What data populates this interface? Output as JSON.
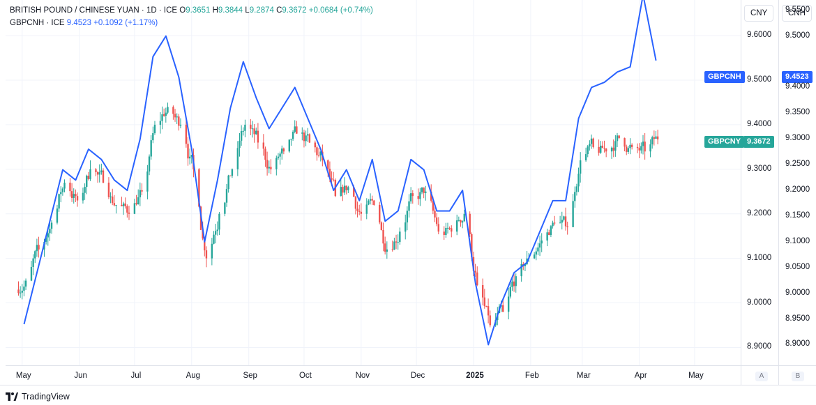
{
  "legend": {
    "main": {
      "title": "BRITISH POUND / CHINESE YUAN · 1D · ICE",
      "o_label": "O",
      "o": "9.3651",
      "h_label": "H",
      "h": "9.3844",
      "l_label": "L",
      "l": "9.2874",
      "c_label": "C",
      "c": "9.3672",
      "change": "+0.0684 (+0.74%)"
    },
    "compare": {
      "title": "GBPCNH · ICE",
      "price": "9.4523",
      "change": "+0.1092 (+1.17%)"
    }
  },
  "axes": {
    "left_unit": "CNY",
    "right_unit": "CNH",
    "left_ticks": [
      "9.6000",
      "9.5000",
      "9.4000",
      "9.3000",
      "9.2000",
      "9.1000",
      "9.0000",
      "8.9000"
    ],
    "right_ticks": [
      "9.5500",
      "9.5000",
      "9.4000",
      "9.3500",
      "9.3000",
      "9.2500",
      "9.2000",
      "9.1500",
      "9.1000",
      "9.0500",
      "9.0000",
      "8.9500",
      "8.9000"
    ],
    "months": [
      "May",
      "Jun",
      "Jul",
      "Aug",
      "Sep",
      "Oct",
      "Nov",
      "Dec",
      "2025",
      "Feb",
      "Mar",
      "Apr",
      "May"
    ],
    "scale_buttons": [
      "A",
      "B"
    ]
  },
  "pills": {
    "cnh_label": "GBPCNH",
    "cnh_value": "9.4523",
    "cny_label": "GBPCNY",
    "cny_value": "9.3672"
  },
  "footer": {
    "brand": "TradingView"
  },
  "colors": {
    "up": "#26a69a",
    "down": "#ef5350",
    "compare": "#2962ff",
    "grid": "#f0f3fa"
  },
  "chart_data": {
    "type": "candlestick",
    "series": [
      {
        "name": "GBPCNY",
        "type": "candlestick",
        "x": [
          "2024-04-29",
          "2024-05-06",
          "2024-05-13",
          "2024-05-20",
          "2024-05-27",
          "2024-06-03",
          "2024-06-10",
          "2024-06-17",
          "2024-06-24",
          "2024-07-01",
          "2024-07-08",
          "2024-07-15",
          "2024-07-22",
          "2024-07-29",
          "2024-08-05",
          "2024-08-12",
          "2024-08-19",
          "2024-08-26",
          "2024-09-02",
          "2024-09-09",
          "2024-09-16",
          "2024-09-23",
          "2024-09-30",
          "2024-10-07",
          "2024-10-14",
          "2024-10-21",
          "2024-10-28",
          "2024-11-04",
          "2024-11-11",
          "2024-11-18",
          "2024-11-25",
          "2024-12-02",
          "2024-12-09",
          "2024-12-16",
          "2024-12-23",
          "2024-12-30",
          "2025-01-06",
          "2025-01-13",
          "2025-01-20",
          "2025-01-27",
          "2025-02-03",
          "2025-02-10",
          "2025-02-17",
          "2025-02-24",
          "2025-03-03",
          "2025-03-10",
          "2025-03-17",
          "2025-03-24",
          "2025-03-31",
          "2025-04-07"
        ],
        "close": [
          9.05,
          9.12,
          9.18,
          9.27,
          9.23,
          9.3,
          9.27,
          9.22,
          9.2,
          9.25,
          9.4,
          9.44,
          9.4,
          9.3,
          9.1,
          9.2,
          9.3,
          9.4,
          9.36,
          9.3,
          9.34,
          9.38,
          9.36,
          9.32,
          9.24,
          9.26,
          9.2,
          9.22,
          9.12,
          9.16,
          9.24,
          9.25,
          9.16,
          9.16,
          9.2,
          9.04,
          8.95,
          8.98,
          9.06,
          9.1,
          9.14,
          9.18,
          9.17,
          9.32,
          9.35,
          9.34,
          9.37,
          9.35,
          9.34,
          9.3672
        ]
      },
      {
        "name": "GBPCNH",
        "type": "line",
        "x": [
          "2024-04-29",
          "2024-05-06",
          "2024-05-13",
          "2024-05-20",
          "2024-05-27",
          "2024-06-03",
          "2024-06-10",
          "2024-06-17",
          "2024-06-24",
          "2024-07-01",
          "2024-07-08",
          "2024-07-15",
          "2024-07-22",
          "2024-07-29",
          "2024-08-05",
          "2024-08-12",
          "2024-08-19",
          "2024-08-26",
          "2024-09-02",
          "2024-09-09",
          "2024-09-16",
          "2024-09-23",
          "2024-09-30",
          "2024-10-07",
          "2024-10-14",
          "2024-10-21",
          "2024-10-28",
          "2024-11-04",
          "2024-11-11",
          "2024-11-18",
          "2024-11-25",
          "2024-12-02",
          "2024-12-09",
          "2024-12-16",
          "2024-12-23",
          "2024-12-30",
          "2025-01-06",
          "2025-01-13",
          "2025-01-20",
          "2025-01-27",
          "2025-02-03",
          "2025-02-10",
          "2025-02-17",
          "2025-02-24",
          "2025-03-03",
          "2025-03-10",
          "2025-03-17",
          "2025-03-24",
          "2025-03-31",
          "2025-04-07"
        ],
        "y": [
          8.94,
          9.04,
          9.14,
          9.24,
          9.22,
          9.28,
          9.26,
          9.22,
          9.2,
          9.3,
          9.46,
          9.5,
          9.42,
          9.28,
          9.1,
          9.22,
          9.36,
          9.45,
          9.38,
          9.32,
          9.36,
          9.4,
          9.34,
          9.28,
          9.2,
          9.24,
          9.18,
          9.26,
          9.14,
          9.16,
          9.26,
          9.24,
          9.16,
          9.16,
          9.2,
          9.02,
          8.9,
          8.98,
          9.04,
          9.06,
          9.12,
          9.18,
          9.18,
          9.34,
          9.4,
          9.41,
          9.43,
          9.44,
          9.58,
          9.4523
        ]
      }
    ],
    "ylim_left": [
      8.86,
      9.68
    ],
    "ylim_right": [
      8.86,
      9.57
    ],
    "x_tick_labels": [
      "May",
      "Jun",
      "Jul",
      "Aug",
      "Sep",
      "Oct",
      "Nov",
      "Dec",
      "2025",
      "Feb",
      "Mar",
      "Apr",
      "May"
    ],
    "grid": true
  }
}
